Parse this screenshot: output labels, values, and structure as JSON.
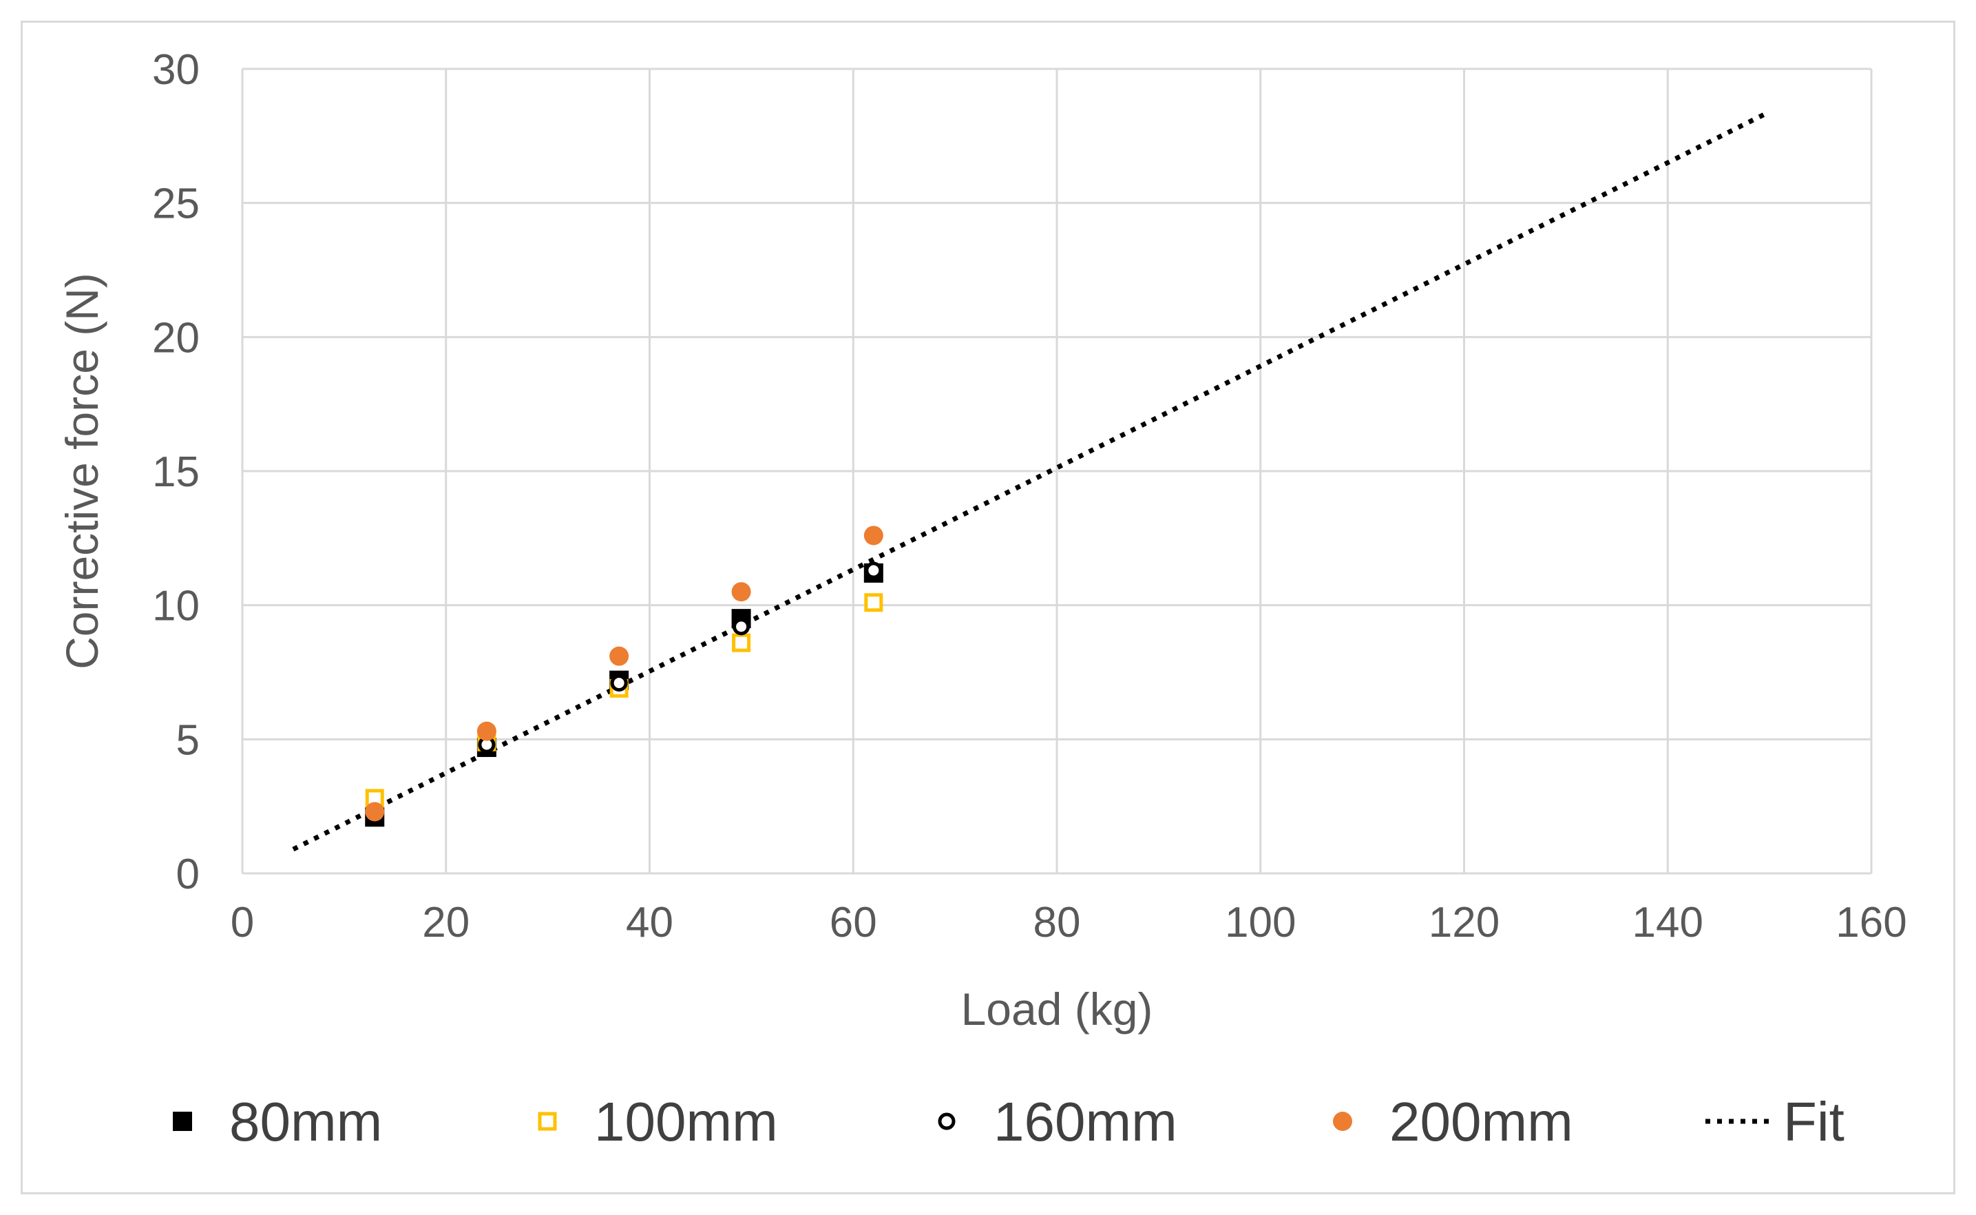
{
  "chart_data": {
    "type": "scatter",
    "title": "",
    "xlabel": "Load (kg)",
    "ylabel": "Corrective force (N)",
    "xlim": [
      0,
      160
    ],
    "ylim": [
      0,
      30
    ],
    "xticks": [
      0,
      20,
      40,
      60,
      80,
      100,
      120,
      140,
      160
    ],
    "yticks": [
      0,
      5,
      10,
      15,
      20,
      25,
      30
    ],
    "grid": true,
    "legend_position": "bottom",
    "series": [
      {
        "name": "80mm",
        "marker": "filled-square",
        "color": "#000000",
        "x": [
          13,
          24,
          37,
          49,
          62
        ],
        "y": [
          2.1,
          4.7,
          7.2,
          9.5,
          11.2
        ]
      },
      {
        "name": "100mm",
        "marker": "open-square",
        "color": "#ffc000",
        "x": [
          13,
          24,
          37,
          49,
          62
        ],
        "y": [
          2.8,
          4.9,
          6.9,
          8.6,
          10.1
        ]
      },
      {
        "name": "160mm",
        "marker": "open-circle",
        "color": "#000000",
        "x": [
          13,
          24,
          37,
          49,
          62
        ],
        "y": [
          2.2,
          4.8,
          7.1,
          9.2,
          11.3
        ]
      },
      {
        "name": "200mm",
        "marker": "filled-circle",
        "color": "#ed7d31",
        "x": [
          13,
          24,
          37,
          49,
          62
        ],
        "y": [
          2.3,
          5.3,
          8.1,
          10.5,
          12.6
        ]
      }
    ],
    "fit": {
      "name": "Fit",
      "style": "dotted",
      "color": "#000000",
      "x": [
        5,
        150
      ],
      "y": [
        0.9,
        28.4
      ]
    }
  }
}
